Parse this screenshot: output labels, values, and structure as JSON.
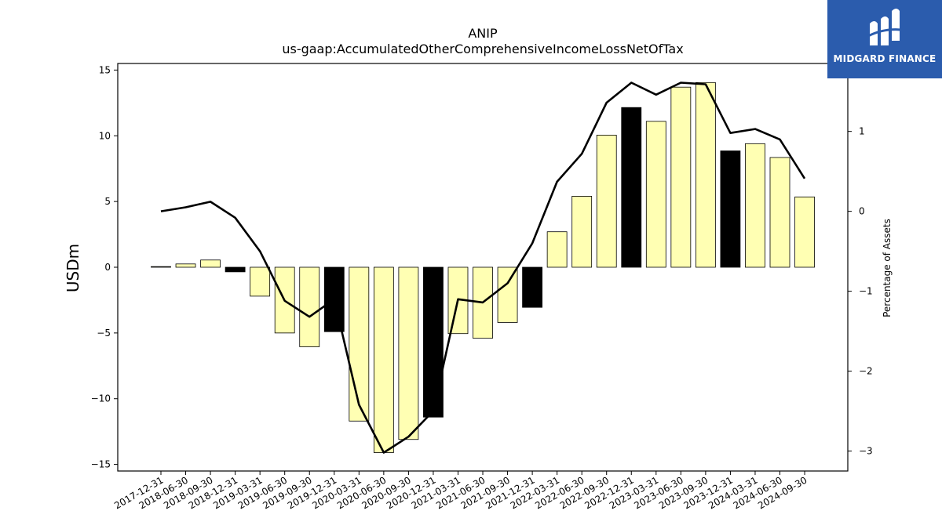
{
  "logo": {
    "text": "MIDGARD FINANCE"
  },
  "chart_data": {
    "type": "bar",
    "title": "ANIP",
    "subtitle": "us-gaap:AccumulatedOtherComprehensiveIncomeLossNetOfTax",
    "ylabel": "USDm",
    "y2label": "Percentage of Assets",
    "ylim": [
      -15.5,
      15.5
    ],
    "y2lim": [
      -3.25,
      1.85
    ],
    "yticks": [
      -15,
      -10,
      -5,
      0,
      5,
      10,
      15
    ],
    "y2ticks": [
      -3,
      -2,
      -1,
      0,
      1
    ],
    "grid": false,
    "colors": {
      "bar": "#ffffb3",
      "bar_q4": "#000000",
      "edge": "#000000",
      "line": "#000000"
    },
    "categories": [
      "2017-12-31",
      "2018-06-30",
      "2018-09-30",
      "2018-12-31",
      "2019-03-31",
      "2019-06-30",
      "2019-09-30",
      "2019-12-31",
      "2020-03-31",
      "2020-06-30",
      "2020-09-30",
      "2020-12-31",
      "2021-03-31",
      "2021-06-30",
      "2021-09-30",
      "2021-12-31",
      "2022-03-31",
      "2022-06-30",
      "2022-09-30",
      "2022-12-31",
      "2023-03-31",
      "2023-06-30",
      "2023-09-30",
      "2023-12-31",
      "2024-03-31",
      "2024-06-30",
      "2024-09-30"
    ],
    "series": [
      {
        "type": "bar",
        "axis": "left",
        "values": [
          0.05,
          0.25,
          0.55,
          -0.35,
          -2.2,
          -5.0,
          -6.05,
          -4.9,
          -11.7,
          -14.1,
          -13.1,
          -11.4,
          -5.05,
          -5.4,
          -4.2,
          -3.05,
          2.7,
          5.4,
          10.05,
          12.15,
          11.1,
          13.7,
          14.05,
          8.85,
          9.4,
          8.35,
          5.35
        ]
      },
      {
        "type": "line",
        "axis": "right",
        "values": [
          0.0,
          0.05,
          0.12,
          -0.08,
          -0.5,
          -1.12,
          -1.32,
          -1.1,
          -2.42,
          -3.02,
          -2.82,
          -2.5,
          -1.1,
          -1.14,
          -0.9,
          -0.4,
          0.37,
          0.72,
          1.36,
          1.61,
          1.46,
          1.61,
          1.59,
          0.98,
          1.03,
          0.9,
          0.41
        ]
      }
    ]
  }
}
